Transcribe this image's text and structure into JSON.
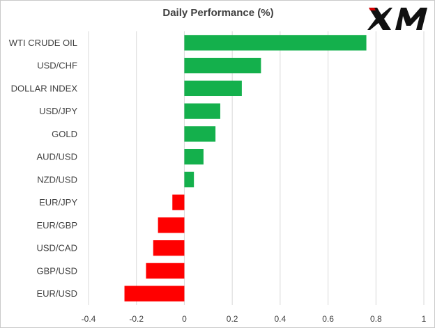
{
  "brand": {
    "name": "XM"
  },
  "chart_data": {
    "type": "bar",
    "orientation": "horizontal",
    "title": "Daily Performance  (%)",
    "categories": [
      "WTI CRUDE OIL",
      "USD/CHF",
      "DOLLAR INDEX",
      "USD/JPY",
      "GOLD",
      "AUD/USD",
      "NZD/USD",
      "EUR/JPY",
      "EUR/GBP",
      "USD/CAD",
      "GBP/USD",
      "EUR/USD"
    ],
    "values": [
      0.76,
      0.32,
      0.24,
      0.15,
      0.13,
      0.08,
      0.04,
      -0.05,
      -0.11,
      -0.13,
      -0.16,
      -0.25
    ],
    "xlim": [
      -0.4,
      1
    ],
    "xticks": [
      "-0.4",
      "-0.2",
      "0",
      "0.2",
      "0.4",
      "0.6",
      "0.8",
      "1"
    ],
    "grid": true,
    "legend": "none",
    "colors": {
      "positive": "#14b04c",
      "negative": "#ff0000",
      "grid": "#d9d9d9",
      "text": "#404040"
    }
  }
}
